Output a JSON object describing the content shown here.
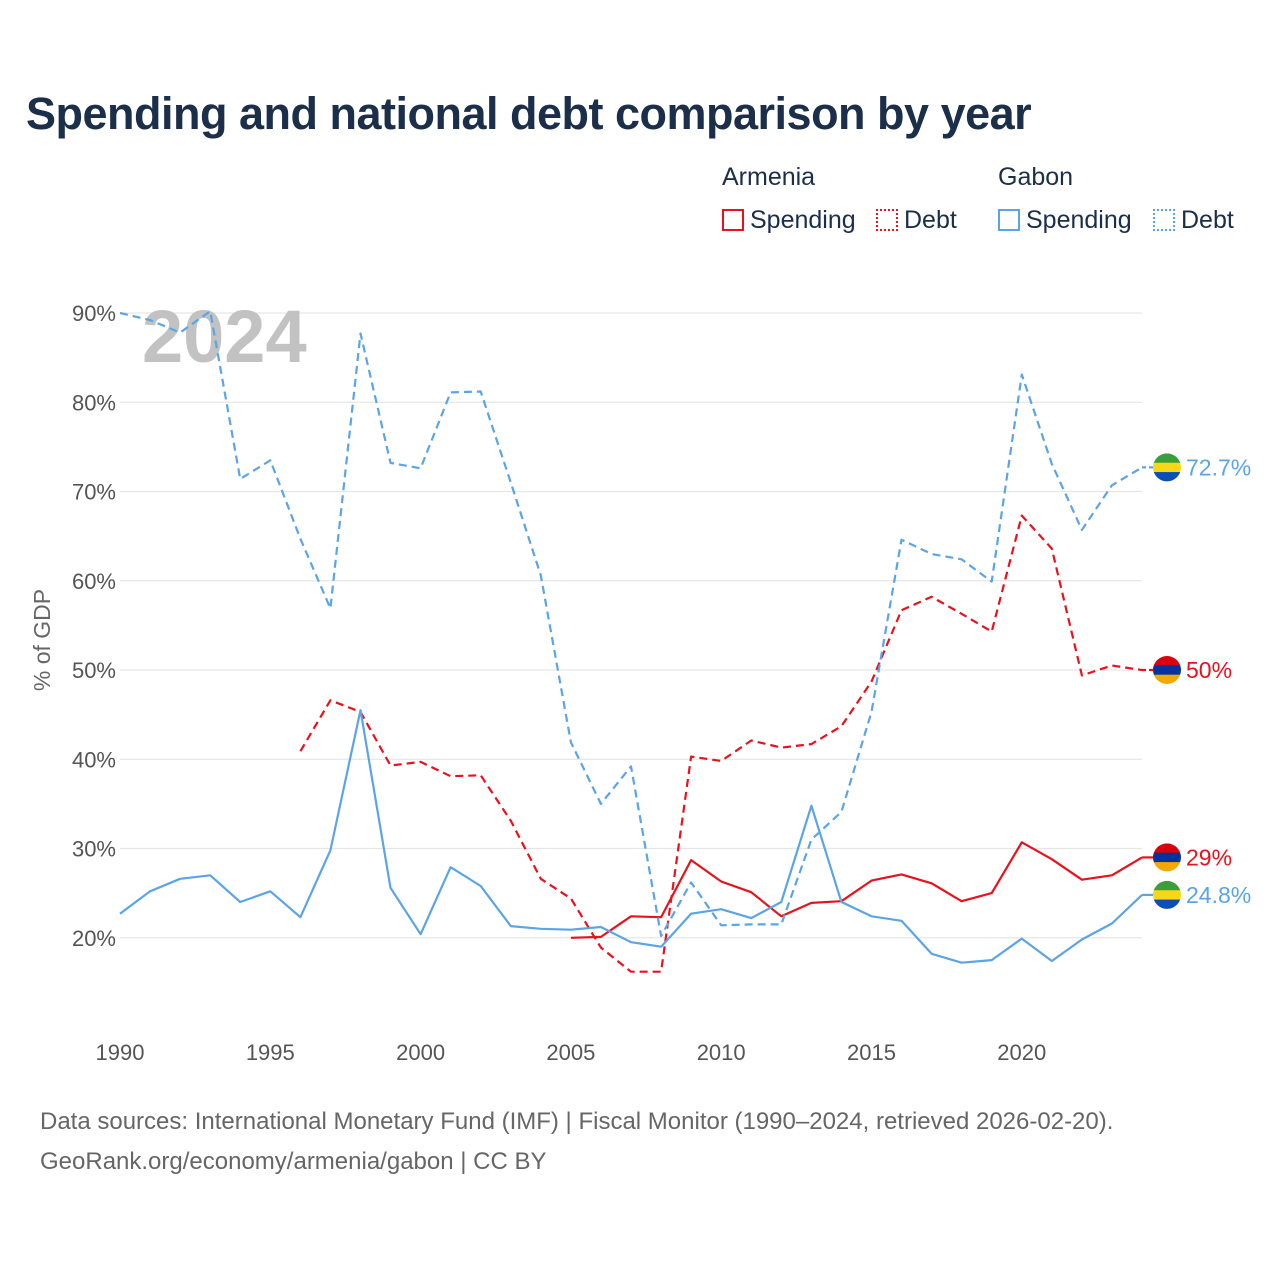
{
  "title": "Spending and national debt comparison by year",
  "legend": {
    "groups": [
      {
        "country": "Armenia",
        "items": [
          {
            "label": "Spending",
            "color": "#e8121c",
            "style": "solid"
          },
          {
            "label": "Debt",
            "color": "#e8121c",
            "style": "dotted"
          }
        ]
      },
      {
        "country": "Gabon",
        "items": [
          {
            "label": "Spending",
            "color": "#5ba4e5",
            "style": "solid"
          },
          {
            "label": "Debt",
            "color": "#5ba4e5",
            "style": "dotted"
          }
        ]
      }
    ]
  },
  "source_text": "Data sources: International Monetary Fund (IMF) | Fiscal Monitor (1990–2024, retrieved 2026-02-20).",
  "url_text": "GeoRank.org/economy/armenia/gabon | CC BY",
  "chart_data": {
    "type": "line",
    "title": "Spending and national debt comparison by year",
    "year_watermark": "2024",
    "xlabel": "",
    "ylabel": "% of GDP",
    "xlim": [
      1990,
      2024
    ],
    "ylim": [
      10,
      90
    ],
    "x_ticks": [
      1990,
      1995,
      2000,
      2005,
      2010,
      2015,
      2020
    ],
    "y_ticks": [
      20,
      30,
      40,
      50,
      60,
      70,
      80,
      90
    ],
    "y_tick_labels": [
      "20%",
      "30%",
      "40%",
      "50%",
      "60%",
      "70%",
      "80%",
      "90%"
    ],
    "grid": true,
    "colors": {
      "armenia": "#e8121c",
      "gabon": "#5ba4e5"
    },
    "series": [
      {
        "name": "Armenia Spending",
        "country": "armenia",
        "style": "solid",
        "flag": "armenia",
        "x": [
          2005,
          2006,
          2007,
          2008,
          2009,
          2010,
          2011,
          2012,
          2013,
          2014,
          2015,
          2016,
          2017,
          2018,
          2019,
          2020,
          2021,
          2022,
          2023,
          2024
        ],
        "values": [
          20.0,
          20.1,
          22.4,
          22.3,
          28.7,
          26.3,
          25.1,
          22.4,
          23.9,
          24.1,
          26.4,
          27.1,
          26.1,
          24.1,
          25.0,
          30.7,
          28.8,
          26.5,
          27.0,
          29.0
        ],
        "end_label": "29%"
      },
      {
        "name": "Armenia Debt",
        "country": "armenia",
        "style": "dashed",
        "flag": "armenia",
        "x": [
          1996,
          1997,
          1998,
          1999,
          2000,
          2001,
          2002,
          2003,
          2004,
          2005,
          2006,
          2007,
          2008,
          2009,
          2010,
          2011,
          2012,
          2013,
          2014,
          2015,
          2016,
          2017,
          2018,
          2019,
          2020,
          2021,
          2022,
          2023,
          2024
        ],
        "values": [
          40.9,
          46.6,
          45.3,
          39.3,
          39.7,
          38.1,
          38.2,
          33.1,
          26.6,
          24.4,
          18.9,
          16.2,
          16.2,
          40.3,
          39.8,
          42.1,
          41.3,
          41.7,
          43.7,
          48.7,
          56.7,
          58.2,
          56.3,
          54.3,
          67.3,
          63.6,
          49.4,
          50.5,
          50.0
        ],
        "end_label": "50%"
      },
      {
        "name": "Gabon Spending",
        "country": "gabon",
        "style": "solid",
        "flag": "gabon",
        "x": [
          1990,
          1991,
          1992,
          1993,
          1994,
          1995,
          1996,
          1997,
          1998,
          1999,
          2000,
          2001,
          2002,
          2003,
          2004,
          2005,
          2006,
          2007,
          2008,
          2009,
          2010,
          2011,
          2012,
          2013,
          2014,
          2015,
          2016,
          2017,
          2018,
          2019,
          2020,
          2021,
          2022,
          2023,
          2024
        ],
        "values": [
          22.7,
          25.2,
          26.6,
          27.0,
          24.0,
          25.2,
          22.3,
          29.8,
          45.5,
          25.6,
          20.4,
          27.9,
          25.8,
          21.3,
          21.0,
          20.9,
          21.2,
          19.5,
          19.0,
          22.7,
          23.2,
          22.2,
          24.0,
          34.8,
          24.0,
          22.4,
          21.9,
          18.2,
          17.2,
          17.5,
          19.9,
          17.4,
          19.8,
          21.6,
          24.8
        ],
        "end_label": "24.8%"
      },
      {
        "name": "Gabon Debt",
        "country": "gabon",
        "style": "dashed",
        "flag": "gabon",
        "x": [
          1990,
          1991,
          1992,
          1993,
          1994,
          1995,
          1996,
          1997,
          1998,
          1999,
          2000,
          2001,
          2002,
          2003,
          2004,
          2005,
          2006,
          2007,
          2008,
          2009,
          2010,
          2011,
          2012,
          2013,
          2014,
          2015,
          2016,
          2017,
          2018,
          2019,
          2020,
          2021,
          2022,
          2023,
          2024
        ],
        "values": [
          90.0,
          89.2,
          87.8,
          90.2,
          71.4,
          73.5,
          64.7,
          56.9,
          87.7,
          73.2,
          72.6,
          81.1,
          81.2,
          71.0,
          60.6,
          41.9,
          35.0,
          39.2,
          20.2,
          26.2,
          21.4,
          21.5,
          21.5,
          31.0,
          34.1,
          45.3,
          64.6,
          63.0,
          62.4,
          59.9,
          83.1,
          73.1,
          65.7,
          70.7,
          72.7
        ],
        "end_label": "72.7%"
      }
    ]
  }
}
